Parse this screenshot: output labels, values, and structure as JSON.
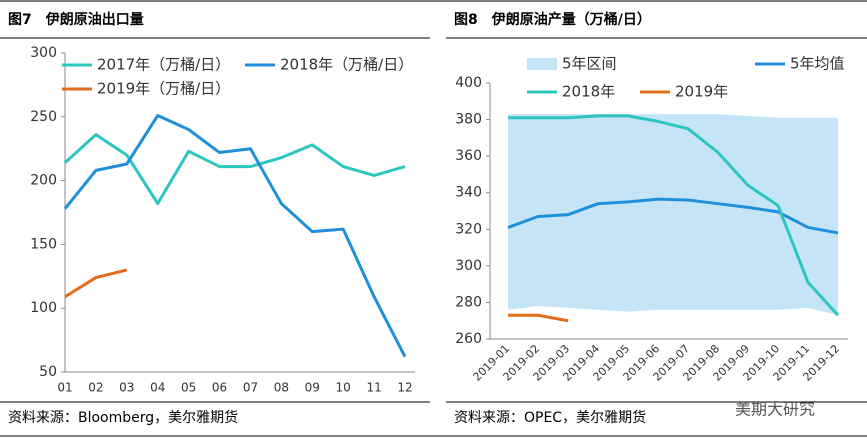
{
  "chart_data": [
    {
      "type": "line",
      "title": "图7　伊朗原油出口量",
      "categories": [
        "01",
        "02",
        "03",
        "04",
        "05",
        "06",
        "07",
        "08",
        "09",
        "10",
        "11",
        "12"
      ],
      "ylim": [
        50,
        300
      ],
      "yticks": [
        50,
        100,
        150,
        200,
        250,
        300
      ],
      "series": [
        {
          "name": "2017年（万桶/日）",
          "color": "#2cc6c0",
          "values": [
            214,
            236,
            220,
            182,
            223,
            211,
            211,
            218,
            228,
            211,
            204,
            211
          ]
        },
        {
          "name": "2018年（万桶/日）",
          "color": "#1f8fdc",
          "values": [
            178,
            208,
            213,
            251,
            240,
            222,
            225,
            182,
            160,
            162,
            109,
            62
          ]
        },
        {
          "name": "2019年（万桶/日）",
          "color": "#e36c1a",
          "values": [
            109,
            124,
            130,
            null,
            null,
            null,
            null,
            null,
            null,
            null,
            null,
            null
          ]
        }
      ],
      "source": "资料来源：Bloomberg，美尔雅期货"
    },
    {
      "type": "line",
      "title": "图8　伊朗原油产量（万桶/日）",
      "categories": [
        "2019-01",
        "2019-02",
        "2019-03",
        "2019-04",
        "2019-05",
        "2019-06",
        "2019-07",
        "2019-08",
        "2019-09",
        "2019-10",
        "2019-11",
        "2019-12"
      ],
      "ylim": [
        260,
        400
      ],
      "yticks": [
        260,
        280,
        300,
        320,
        340,
        360,
        380,
        400
      ],
      "band": {
        "name": "5年区间",
        "color": "#c5e5f7",
        "low": [
          276,
          278,
          277,
          276,
          275,
          276,
          276,
          276,
          276,
          276,
          277,
          273
        ],
        "high": [
          383,
          383,
          383,
          383,
          383,
          383,
          383,
          383,
          382,
          381,
          381,
          381
        ]
      },
      "series": [
        {
          "name": "5年均值",
          "color": "#1f8fdc",
          "values": [
            321,
            327,
            328,
            334,
            335,
            336.5,
            336,
            334,
            332,
            329.5,
            321,
            318
          ]
        },
        {
          "name": "2018年",
          "color": "#2cc6c0",
          "values": [
            381,
            381,
            381,
            382,
            382,
            379,
            375,
            362,
            344,
            333,
            291,
            273
          ]
        },
        {
          "name": "2019年",
          "color": "#e36c1a",
          "values": [
            273,
            273,
            270,
            null,
            null,
            null,
            null,
            null,
            null,
            null,
            null,
            null
          ]
        }
      ],
      "source": "资料来源：OPEC，美尔雅期货",
      "watermark": "美期大研究"
    }
  ]
}
